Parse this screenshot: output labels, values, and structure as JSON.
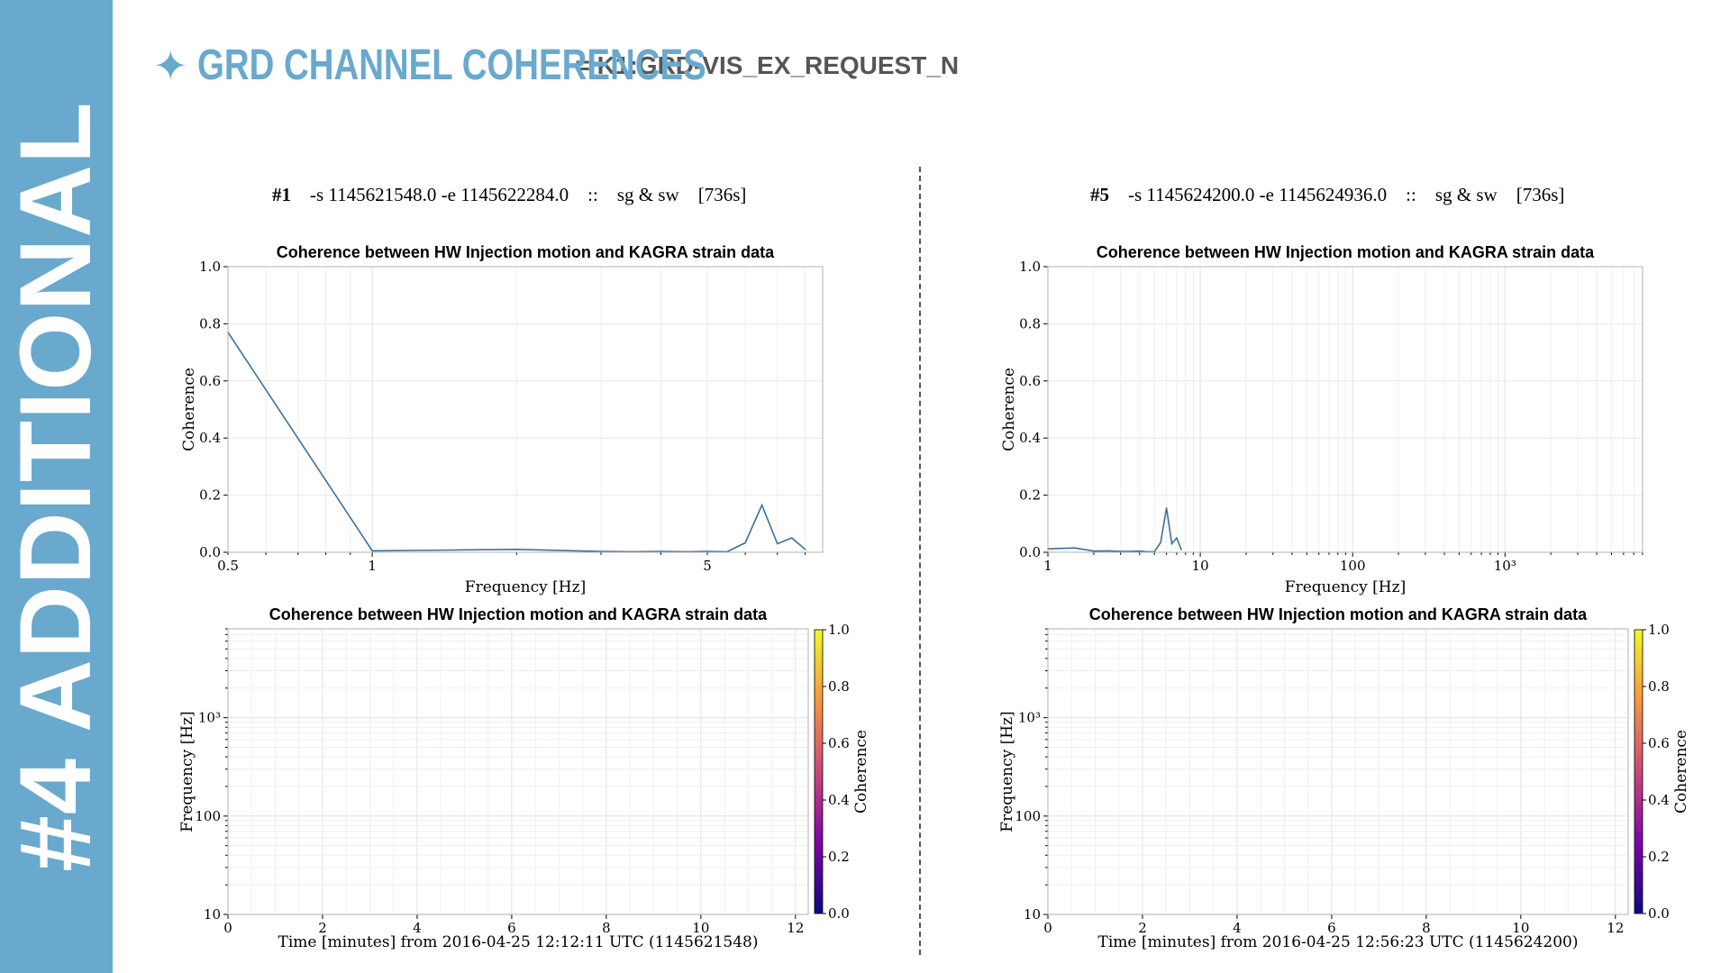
{
  "sidebar": {
    "label": "#4 ADDITIONAL"
  },
  "header": {
    "title": "GRD CHANNEL COHERENCES",
    "subtitle": "= K1:GRD-VIS_EX_REQUEST_N",
    "icon": "star-icon",
    "accent": "#69a9cd"
  },
  "runs": [
    {
      "num": "#1",
      "args": "-s 1145621548.0 -e 1145622284.0",
      "sep": "::",
      "tags": "sg & sw",
      "duration": "[736s]"
    },
    {
      "num": "#5",
      "args": "-s 1145624200.0 -e 1145624936.0",
      "sep": "::",
      "tags": "sg & sw",
      "duration": "[736s]"
    }
  ],
  "chart_data": [
    {
      "type": "line",
      "title": "Coherence between HW Injection motion and KAGRA strain data",
      "xlabel": "Frequency [Hz]",
      "ylabel": "Coherence",
      "xscale": "log",
      "xlim": [
        0.5,
        8.7
      ],
      "ylim": [
        0,
        1
      ],
      "xticks": [
        {
          "v": 0.5,
          "label": "0.5"
        },
        {
          "v": 1,
          "label": "1"
        },
        {
          "v": 5,
          "label": "5"
        }
      ],
      "yticks": [
        "0.0",
        "0.2",
        "0.4",
        "0.6",
        "0.8",
        "1.0"
      ],
      "grid": true,
      "color": "#3d6f9e",
      "x": [
        0.5,
        1.0,
        1.5,
        2.0,
        2.5,
        3.0,
        3.5,
        4.0,
        4.5,
        5.0,
        5.5,
        6.0,
        6.5,
        7.0,
        7.5,
        8.0
      ],
      "y": [
        0.77,
        0.005,
        0.008,
        0.01,
        0.006,
        0.003,
        0.002,
        0.003,
        0.002,
        0.003,
        0.002,
        0.033,
        0.165,
        0.03,
        0.05,
        0.01
      ]
    },
    {
      "type": "line",
      "title": "Coherence between HW Injection motion and KAGRA strain data",
      "xlabel": "Frequency [Hz]",
      "ylabel": "Coherence",
      "xscale": "log",
      "xlim": [
        1,
        8000
      ],
      "ylim": [
        0,
        1
      ],
      "xticks": [
        {
          "v": 1,
          "label": "1"
        },
        {
          "v": 10,
          "label": "10"
        },
        {
          "v": 100,
          "label": "100"
        },
        {
          "v": 1000,
          "label": "10³"
        }
      ],
      "yticks": [
        "0.0",
        "0.2",
        "0.4",
        "0.6",
        "0.8",
        "1.0"
      ],
      "grid": true,
      "color": "#3d6f9e",
      "x": [
        1.0,
        1.5,
        2.0,
        2.5,
        3.0,
        3.5,
        4.0,
        4.5,
        5.0,
        5.5,
        6.0,
        6.5,
        7.0,
        7.5
      ],
      "y": [
        0.012,
        0.015,
        0.004,
        0.005,
        0.003,
        0.003,
        0.004,
        0.002,
        0.002,
        0.035,
        0.155,
        0.03,
        0.05,
        0.01
      ]
    },
    {
      "type": "heatmap",
      "title": "Coherence between HW Injection motion and KAGRA strain data",
      "xlabel": "Time [minutes] from 2016-04-25 12:12:11 UTC (1145621548)",
      "ylabel": "Frequency [Hz]",
      "xlim": [
        0,
        12.27
      ],
      "ylim": [
        10,
        8000
      ],
      "yscale": "log",
      "xticks": [
        "0",
        "2",
        "4",
        "6",
        "8",
        "10",
        "12"
      ],
      "yticks": [
        {
          "v": 10,
          "label": "10"
        },
        {
          "v": 100,
          "label": "100"
        },
        {
          "v": 1000,
          "label": "10³"
        }
      ],
      "colorbar": {
        "label": "Coherence",
        "range": [
          0,
          1
        ],
        "ticks": [
          "0.0",
          "0.2",
          "0.4",
          "0.6",
          "0.8",
          "1.0"
        ]
      },
      "values": []
    },
    {
      "type": "heatmap",
      "title": "Coherence between HW Injection motion and KAGRA strain data",
      "xlabel": "Time [minutes] from 2016-04-25 12:56:23 UTC (1145624200)",
      "ylabel": "Frequency [Hz]",
      "xlim": [
        0,
        12.27
      ],
      "ylim": [
        10,
        8000
      ],
      "yscale": "log",
      "xticks": [
        "0",
        "2",
        "4",
        "6",
        "8",
        "10",
        "12"
      ],
      "yticks": [
        {
          "v": 10,
          "label": "10"
        },
        {
          "v": 100,
          "label": "100"
        },
        {
          "v": 1000,
          "label": "10³"
        }
      ],
      "colorbar": {
        "label": "Coherence",
        "range": [
          0,
          1
        ],
        "ticks": [
          "0.0",
          "0.2",
          "0.4",
          "0.6",
          "0.8",
          "1.0"
        ]
      },
      "values": []
    }
  ]
}
